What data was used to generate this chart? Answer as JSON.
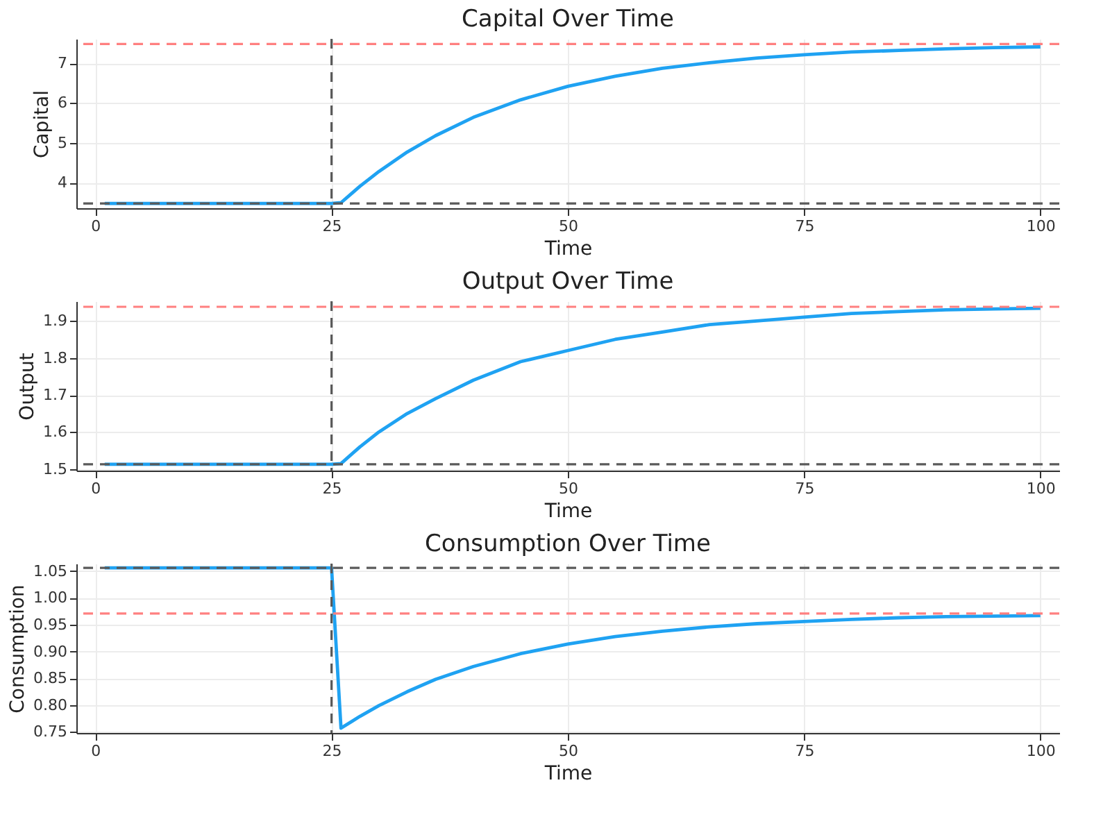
{
  "chart_data": [
    {
      "type": "line",
      "title": "Capital Over Time",
      "xlabel": "Time",
      "ylabel": "Capital",
      "xlim": [
        -2,
        102
      ],
      "xticks": [
        0,
        25,
        50,
        75,
        100
      ],
      "ylim": [
        3.36,
        7.61
      ],
      "yticks": [
        4,
        5,
        6,
        7
      ],
      "grid": true,
      "line_style": "solid",
      "marker": "none",
      "series": [
        {
          "color": "#1fa2f2",
          "x": [
            1,
            5,
            10,
            15,
            20,
            25,
            26,
            28,
            30,
            33,
            36,
            40,
            45,
            50,
            55,
            60,
            65,
            70,
            75,
            80,
            85,
            90,
            95,
            100
          ],
          "values": [
            3.48,
            3.48,
            3.48,
            3.48,
            3.48,
            3.48,
            3.5,
            3.91,
            4.28,
            4.77,
            5.18,
            5.64,
            6.08,
            6.42,
            6.67,
            6.87,
            7.01,
            7.13,
            7.21,
            7.28,
            7.32,
            7.36,
            7.39,
            7.41
          ]
        }
      ],
      "ref_lines": [
        {
          "axis": "y",
          "value": 7.48,
          "color": "#ff8080",
          "line_style": "dashed"
        },
        {
          "axis": "y",
          "value": 3.48,
          "color": "#5a5a5a",
          "line_style": "dashed"
        },
        {
          "axis": "x",
          "value": 25,
          "color": "#5a5a5a",
          "line_style": "dashed"
        }
      ]
    },
    {
      "type": "line",
      "title": "Output Over Time",
      "xlabel": "Time",
      "ylabel": "Output",
      "xlim": [
        -2,
        102
      ],
      "xticks": [
        0,
        25,
        50,
        75,
        100
      ],
      "ylim": [
        1.496,
        1.953
      ],
      "yticks": [
        1.5,
        1.6,
        1.7,
        1.8,
        1.9
      ],
      "grid": true,
      "line_style": "solid",
      "marker": "none",
      "series": [
        {
          "color": "#1fa2f2",
          "x": [
            1,
            5,
            10,
            15,
            20,
            25,
            26,
            28,
            30,
            33,
            36,
            40,
            45,
            50,
            55,
            60,
            65,
            70,
            75,
            80,
            85,
            90,
            95,
            100
          ],
          "values": [
            1.513,
            1.513,
            1.513,
            1.513,
            1.513,
            1.513,
            1.515,
            1.56,
            1.6,
            1.65,
            1.69,
            1.74,
            1.79,
            1.82,
            1.85,
            1.87,
            1.89,
            1.9,
            1.91,
            1.92,
            1.925,
            1.93,
            1.932,
            1.934
          ]
        }
      ],
      "ref_lines": [
        {
          "axis": "y",
          "value": 1.938,
          "color": "#ff8080",
          "line_style": "dashed"
        },
        {
          "axis": "y",
          "value": 1.513,
          "color": "#5a5a5a",
          "line_style": "dashed"
        },
        {
          "axis": "x",
          "value": 25,
          "color": "#5a5a5a",
          "line_style": "dashed"
        }
      ]
    },
    {
      "type": "line",
      "title": "Consumption Over Time",
      "xlabel": "Time",
      "ylabel": "Consumption",
      "xlim": [
        -2,
        102
      ],
      "xticks": [
        0,
        25,
        50,
        75,
        100
      ],
      "ylim": [
        0.748,
        1.064
      ],
      "yticks": [
        {
          "value": 0.75,
          "label": "0.75"
        },
        {
          "value": 0.8,
          "label": "0.80"
        },
        {
          "value": 0.85,
          "label": "0.85"
        },
        {
          "value": 0.9,
          "label": "0.90"
        },
        {
          "value": 0.95,
          "label": "0.95"
        },
        {
          "value": 1.0,
          "label": "1.00"
        },
        {
          "value": 1.05,
          "label": "1.05"
        }
      ],
      "grid": true,
      "line_style": "solid",
      "marker": "none",
      "series": [
        {
          "color": "#1fa2f2",
          "x": [
            1,
            5,
            10,
            15,
            20,
            25,
            26,
            28,
            30,
            33,
            36,
            40,
            45,
            50,
            55,
            60,
            65,
            70,
            75,
            80,
            85,
            90,
            95,
            100
          ],
          "values": [
            1.056,
            1.056,
            1.056,
            1.056,
            1.056,
            1.056,
            0.757,
            0.779,
            0.799,
            0.825,
            0.848,
            0.872,
            0.896,
            0.914,
            0.928,
            0.938,
            0.946,
            0.952,
            0.956,
            0.96,
            0.963,
            0.965,
            0.966,
            0.967
          ]
        }
      ],
      "ref_lines": [
        {
          "axis": "y",
          "value": 0.971,
          "color": "#ff8080",
          "line_style": "dashed"
        },
        {
          "axis": "y",
          "value": 1.056,
          "color": "#5a5a5a",
          "line_style": "dashed"
        },
        {
          "axis": "x",
          "value": 25,
          "color": "#5a5a5a",
          "line_style": "dashed"
        }
      ]
    }
  ]
}
